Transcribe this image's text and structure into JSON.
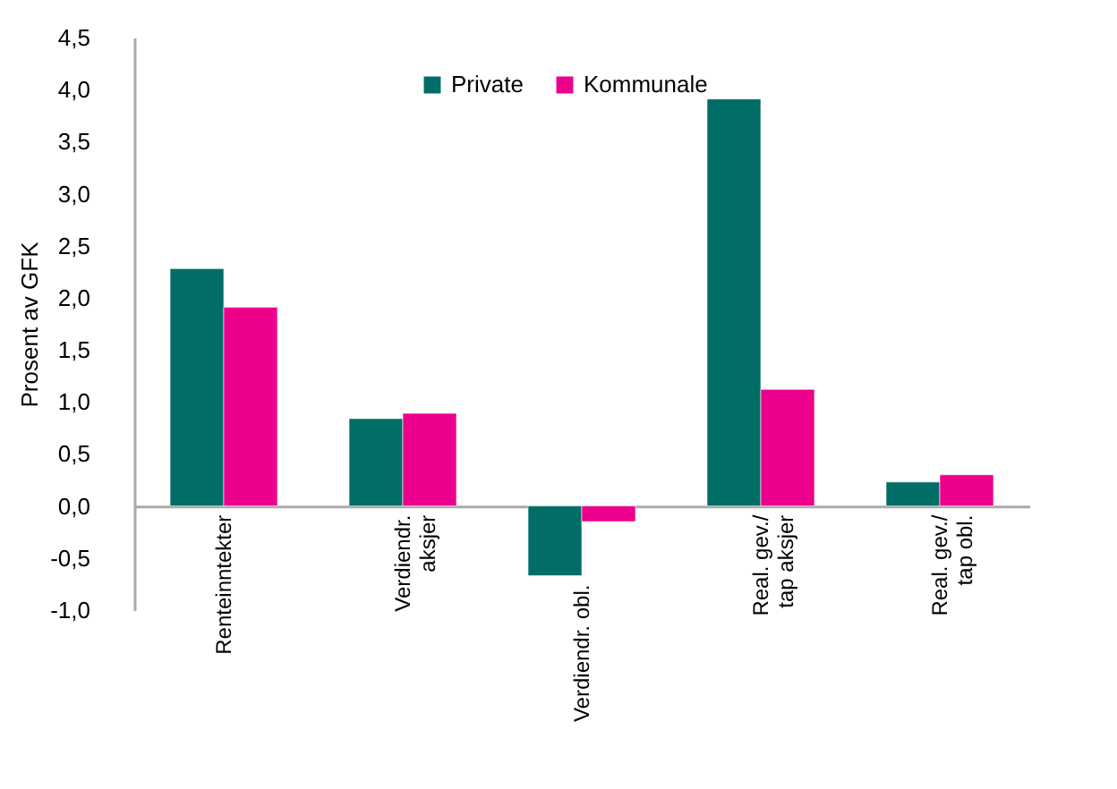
{
  "chart_data": {
    "type": "bar",
    "ylabel": "Prosent av GFK",
    "categories": [
      "Renteinntekter",
      "Verdiendr.\naksjer",
      "Verdiendr. obl.",
      "Real. gev./\ntap aksjer",
      "Real. gev./\ntap obl."
    ],
    "series": [
      {
        "name": "Private",
        "color": "#006d66",
        "values": [
          2.28,
          0.84,
          -0.67,
          3.91,
          0.23
        ]
      },
      {
        "name": "Kommunale",
        "color": "#ec008c",
        "values": [
          1.91,
          0.89,
          -0.15,
          1.12,
          0.3
        ]
      }
    ],
    "ylim": [
      -1.0,
      4.5
    ],
    "yticks": [
      {
        "value": -1.0,
        "label": "-1,0"
      },
      {
        "value": -0.5,
        "label": "-0,5"
      },
      {
        "value": 0,
        "label": "0,0"
      },
      {
        "value": 0.5,
        "label": "0,5"
      },
      {
        "value": 1.0,
        "label": "1,0"
      },
      {
        "value": 1.5,
        "label": "1,5"
      },
      {
        "value": 2.0,
        "label": "2,0"
      },
      {
        "value": 2.5,
        "label": "2,5"
      },
      {
        "value": 3.0,
        "label": "3,0"
      },
      {
        "value": 3.5,
        "label": "3,5"
      },
      {
        "value": 4.0,
        "label": "4,0"
      },
      {
        "value": 4.5,
        "label": "4,5"
      }
    ],
    "grid": false,
    "legend": "top"
  }
}
